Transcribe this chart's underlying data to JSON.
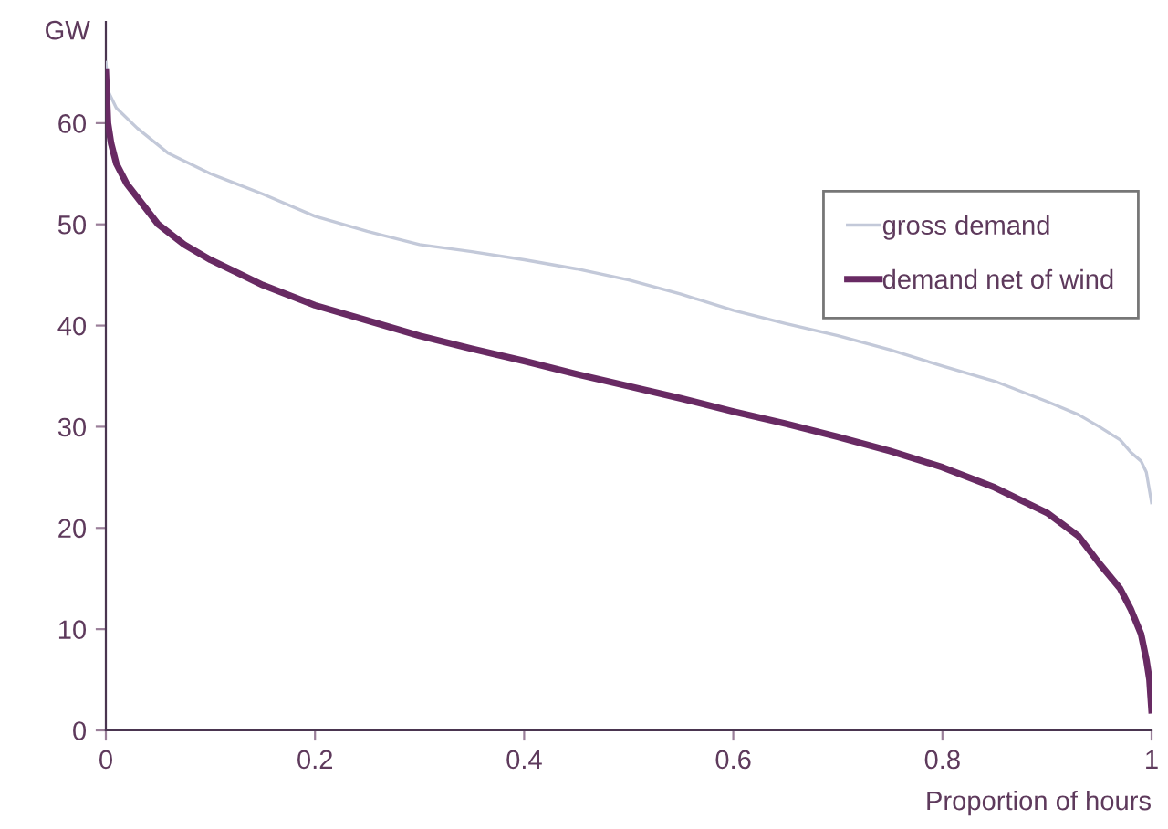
{
  "chart_data": {
    "type": "line",
    "ylabel": "GW",
    "xlabel": "Proportion of hours",
    "xlim": [
      0,
      1
    ],
    "ylim": [
      0,
      70
    ],
    "xticks": [
      0,
      0.2,
      0.4,
      0.6,
      0.8,
      1
    ],
    "yticks": [
      0,
      10,
      20,
      30,
      40,
      50,
      60
    ],
    "grid": false,
    "legend": "top right",
    "marker": "none",
    "line_style": "solid",
    "series": [
      {
        "name": "gross demand",
        "color": "#c3c9d9",
        "x": [
          0,
          0.003,
          0.01,
          0.03,
          0.06,
          0.1,
          0.15,
          0.2,
          0.25,
          0.3,
          0.35,
          0.4,
          0.45,
          0.5,
          0.55,
          0.6,
          0.65,
          0.7,
          0.75,
          0.8,
          0.85,
          0.9,
          0.93,
          0.95,
          0.97,
          0.98,
          0.99,
          0.995,
          1
        ],
        "values": [
          66,
          63,
          61.5,
          59.5,
          57,
          55,
          53,
          50.8,
          49.3,
          48,
          47.3,
          46.5,
          45.6,
          44.5,
          43.1,
          41.5,
          40.2,
          39,
          37.6,
          36,
          34.5,
          32.5,
          31.2,
          30,
          28.7,
          27.5,
          26.6,
          25.5,
          22.5
        ]
      },
      {
        "name": "demand net of wind",
        "color": "#682a63",
        "x": [
          0,
          0.002,
          0.005,
          0.01,
          0.02,
          0.035,
          0.05,
          0.075,
          0.1,
          0.15,
          0.2,
          0.25,
          0.3,
          0.35,
          0.4,
          0.45,
          0.5,
          0.55,
          0.6,
          0.65,
          0.7,
          0.75,
          0.8,
          0.85,
          0.9,
          0.93,
          0.95,
          0.97,
          0.98,
          0.99,
          0.995,
          0.998,
          1
        ],
        "values": [
          65,
          60,
          58,
          56,
          54,
          52,
          50,
          48,
          46.5,
          44,
          42,
          40.5,
          39,
          37.7,
          36.5,
          35.2,
          34,
          32.8,
          31.5,
          30.3,
          29,
          27.6,
          26,
          24,
          21.5,
          19.2,
          16.5,
          14,
          12,
          9.5,
          7,
          5,
          2
        ]
      }
    ]
  }
}
